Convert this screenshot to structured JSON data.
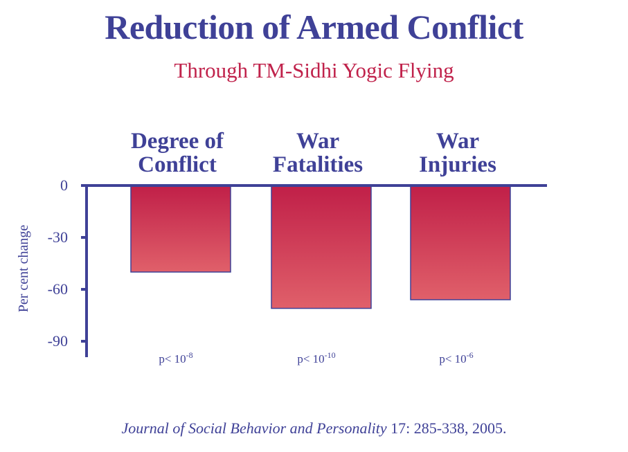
{
  "header": {
    "title": "Reduction of Armed Conflict",
    "subtitle": "Through TM-Sidhi Yogic Flying"
  },
  "chart_data": {
    "type": "bar",
    "title": "Reduction of Armed Conflict",
    "subtitle": "Through TM-Sidhi Yogic Flying",
    "categories": [
      [
        "Degree of",
        "Conflict"
      ],
      [
        "War",
        "Fatalities"
      ],
      [
        "War",
        "Injuries"
      ]
    ],
    "values": [
      -50,
      -71,
      -66
    ],
    "p_values": [
      {
        "base": "p< 10",
        "exp": "-8"
      },
      {
        "base": "p< 10",
        "exp": "-10"
      },
      {
        "base": "p< 10",
        "exp": "-6"
      }
    ],
    "xlabel": "",
    "ylabel": "Per cent change",
    "yticks": [
      0,
      -30,
      -60,
      -90
    ],
    "ytick_labels": [
      "0",
      "-30",
      "-60",
      "-90"
    ],
    "ylim": [
      -100,
      0
    ],
    "colors": {
      "axis": "#3f4197",
      "bar_top": "#c01f48",
      "bar_bottom": "#e0606a",
      "bar_stroke": "#3f4197"
    }
  },
  "citation": {
    "journal": "Journal of Social Behavior and Personality",
    "details": " 17: 285-338, 2005."
  }
}
